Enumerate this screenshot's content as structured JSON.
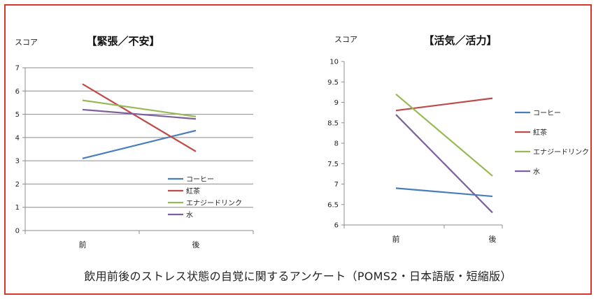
{
  "caption": "飲用前後のストレス状態の自覚に関するアンケート（POMS2・日本語版・短縮版）",
  "colors": {
    "frame": "#d9352b",
    "grid": "#8c8c8c",
    "axis": "#8c8c8c"
  },
  "chart_data": [
    {
      "type": "line",
      "title": "【緊張／不安】",
      "ylabel": "スコア",
      "categories": [
        "前",
        "後"
      ],
      "ylim": [
        0,
        7
      ],
      "yticks": [
        0,
        1,
        2,
        3,
        4,
        5,
        6,
        7
      ],
      "ytick_labels": [
        "0",
        "1",
        "2",
        "3",
        "4",
        "5",
        "6",
        "7"
      ],
      "grid": true,
      "legend_position": "inside-lower-right",
      "series": [
        {
          "name": "コーヒー",
          "color": "#4a7ebb",
          "values": [
            3.1,
            4.3
          ]
        },
        {
          "name": "紅茶",
          "color": "#be4b48",
          "values": [
            6.3,
            3.4
          ]
        },
        {
          "name": "エナジードリンク",
          "color": "#98b954",
          "values": [
            5.6,
            4.9
          ]
        },
        {
          "name": "水",
          "color": "#7d60a0",
          "values": [
            5.2,
            4.8
          ]
        }
      ]
    },
    {
      "type": "line",
      "title": "【活気／活力】",
      "ylabel": "スコア",
      "categories": [
        "前",
        "後"
      ],
      "ylim": [
        6,
        10
      ],
      "yticks": [
        6,
        6.5,
        7,
        7.5,
        8,
        8.5,
        9,
        9.5,
        10
      ],
      "ytick_labels": [
        "6",
        "6.5",
        "7",
        "7.5",
        "8",
        "8.5",
        "9",
        "9.5",
        "10"
      ],
      "grid": false,
      "legend_position": "right",
      "series": [
        {
          "name": "コーヒー",
          "color": "#4a7ebb",
          "values": [
            6.9,
            6.7
          ]
        },
        {
          "name": "紅茶",
          "color": "#be4b48",
          "values": [
            8.8,
            9.1
          ]
        },
        {
          "name": "エナジードリンク",
          "color": "#98b954",
          "values": [
            9.2,
            7.2
          ]
        },
        {
          "name": "水",
          "color": "#7d60a0",
          "values": [
            8.7,
            6.3
          ]
        }
      ]
    }
  ]
}
